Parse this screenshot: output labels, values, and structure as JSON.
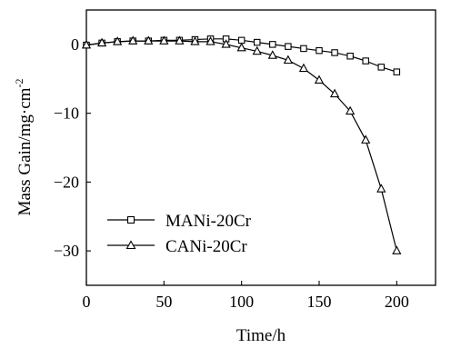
{
  "chart_data": {
    "type": "line",
    "xlabel": "Time/h",
    "ylabel_parts": [
      "Mass Gain/mg·cm",
      "-2"
    ],
    "xlim": [
      0,
      225
    ],
    "ylim": [
      -35,
      5
    ],
    "xticks": [
      0,
      50,
      100,
      150,
      200
    ],
    "yticks": [
      0,
      -10,
      -20,
      -30
    ],
    "xtick_labels": [
      "0",
      "50",
      "100",
      "150",
      "200"
    ],
    "ytick_labels": [
      "0",
      "−10",
      "−20",
      "−30"
    ],
    "legend_position": "lower-left",
    "series": [
      {
        "name": "MANi-20Cr",
        "marker": "square",
        "color": "#000000",
        "x": [
          0,
          10,
          20,
          30,
          40,
          50,
          60,
          70,
          80,
          90,
          100,
          110,
          120,
          130,
          140,
          150,
          160,
          170,
          180,
          190,
          200
        ],
        "y": [
          -0.1,
          0.2,
          0.4,
          0.5,
          0.5,
          0.6,
          0.6,
          0.7,
          0.8,
          0.8,
          0.6,
          0.3,
          0.0,
          -0.3,
          -0.6,
          -0.9,
          -1.2,
          -1.7,
          -2.4,
          -3.3,
          -4.0
        ]
      },
      {
        "name": "CANi-20Cr",
        "marker": "triangle",
        "color": "#000000",
        "x": [
          0,
          10,
          20,
          30,
          40,
          50,
          60,
          70,
          80,
          90,
          100,
          110,
          120,
          130,
          140,
          150,
          160,
          170,
          180,
          190,
          200
        ],
        "y": [
          -0.1,
          0.2,
          0.4,
          0.5,
          0.5,
          0.5,
          0.5,
          0.4,
          0.4,
          0.0,
          -0.5,
          -1.0,
          -1.6,
          -2.3,
          -3.5,
          -5.2,
          -7.2,
          -9.7,
          -13.9,
          -21.0,
          -30.0
        ]
      }
    ]
  }
}
